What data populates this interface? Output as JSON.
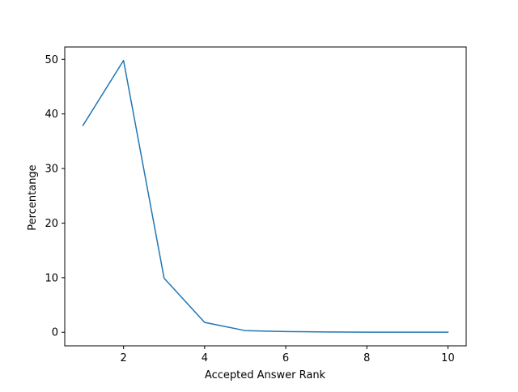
{
  "chart_data": {
    "type": "line",
    "xlabel": "Accepted Answer Rank",
    "ylabel": "Percentange",
    "xlim": [
      0.55,
      10.45
    ],
    "ylim": [
      -2.49,
      52.27
    ],
    "xticks": [
      2,
      4,
      6,
      8,
      10
    ],
    "yticks": [
      0,
      10,
      20,
      30,
      40,
      50
    ],
    "grid": false,
    "series": [
      {
        "color": "#1f77b4",
        "x": [
          1,
          2,
          3,
          4,
          5,
          6,
          7,
          8,
          9,
          10
        ],
        "y": [
          37.9,
          49.8,
          9.9,
          1.8,
          0.3,
          0.12,
          0.05,
          0.02,
          0.01,
          0.01
        ]
      }
    ]
  }
}
